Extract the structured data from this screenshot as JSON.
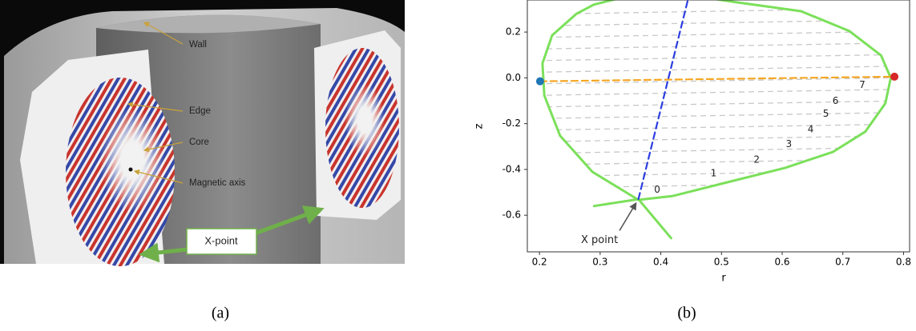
{
  "panel_a": {
    "labels": [
      "Wall",
      "Edge",
      "Core",
      "Magnetic axis"
    ],
    "callout": "X-point",
    "caption": "(a)"
  },
  "chart_data": {
    "type": "line",
    "caption": "(b)",
    "x_label": "r",
    "y_label": "z",
    "xlim": [
      0.18,
      0.81
    ],
    "ylim": [
      -0.76,
      0.34
    ],
    "xticks": [
      0.2,
      0.3,
      0.4,
      0.5,
      0.6,
      0.7,
      0.8
    ],
    "yticks": [
      0.2,
      {
        "value": 0,
        "label": "0.0"
      },
      -0.2,
      -0.4,
      -0.6
    ],
    "series": [
      {
        "color": "#7be05a",
        "style": "solid",
        "x": [
          0.363,
          0.42,
          0.499,
          0.605,
          0.684,
          0.737,
          0.77,
          0.779,
          0.763,
          0.711,
          0.631,
          0.525,
          0.45,
          0.35,
          0.29,
          0.261,
          0.221,
          0.205,
          0.208,
          0.234,
          0.287,
          0.363
        ],
        "values": [
          -0.533,
          -0.516,
          -0.463,
          -0.393,
          -0.323,
          -0.235,
          -0.112,
          0.0,
          0.098,
          0.204,
          0.291,
          0.33,
          0.36,
          0.36,
          0.32,
          0.28,
          0.186,
          0.063,
          -0.077,
          -0.253,
          -0.41,
          -0.533
        ]
      },
      {
        "color": "#7be05a",
        "style": "solid",
        "x": [
          0.29,
          0.363,
          0.417
        ],
        "values": [
          -0.56,
          -0.53,
          -0.7
        ]
      },
      {
        "color": "#f5a623",
        "style": "dashed",
        "x": [
          0.201,
          0.785
        ],
        "values": [
          -0.015,
          0.005
        ]
      },
      {
        "color": "#2b3de0",
        "style": "dashed",
        "x": [
          0.363,
          0.445
        ],
        "values": [
          -0.53,
          0.344
        ]
      },
      {
        "color": "#1f77b4",
        "style": "dot",
        "x": [
          0.201
        ],
        "values": [
          -0.015
        ]
      },
      {
        "color": "#d62728",
        "style": "dot",
        "x": [
          0.785
        ],
        "values": [
          0.005
        ]
      }
    ],
    "annotations": [
      {
        "text": "0",
        "x": 0.394,
        "y": -0.49
      },
      {
        "text": "1",
        "x": 0.487,
        "y": -0.418
      },
      {
        "text": "2",
        "x": 0.558,
        "y": -0.358
      },
      {
        "text": "3",
        "x": 0.611,
        "y": -0.291
      },
      {
        "text": "4",
        "x": 0.647,
        "y": -0.225
      },
      {
        "text": "5",
        "x": 0.672,
        "y": -0.158
      },
      {
        "text": "6",
        "x": 0.688,
        "y": -0.102
      },
      {
        "text": "7",
        "x": 0.732,
        "y": -0.032
      },
      {
        "text": "X point",
        "x": 0.299,
        "y": -0.709,
        "arrow_to": [
          0.363,
          -0.53
        ]
      }
    ]
  }
}
